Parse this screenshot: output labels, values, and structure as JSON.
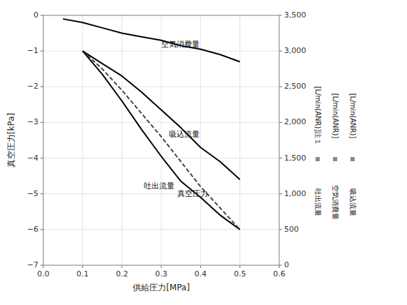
{
  "chart_data": {
    "type": "line",
    "xlabel": "供給圧力[MPa]",
    "ylabel": "真空圧力[kPa]",
    "xlim": [
      0.0,
      0.6
    ],
    "xticks": [
      {
        "value": 0.0,
        "label": "0.0"
      },
      0.1,
      0.2,
      0.3,
      0.4,
      0.5,
      0.6
    ],
    "ylim": [
      -7,
      0
    ],
    "yticks": [
      0,
      {
        "value": -1,
        "label": "−1"
      },
      {
        "value": -2,
        "label": "−2"
      },
      {
        "value": -3,
        "label": "−3"
      },
      {
        "value": -4,
        "label": "−4"
      },
      {
        "value": -5,
        "label": "−5"
      },
      {
        "value": -6,
        "label": "−6"
      },
      {
        "value": -7,
        "label": "−7"
      }
    ],
    "y2lim": [
      0,
      3500
    ],
    "y2ticks": [
      0,
      500,
      {
        "value": 1000,
        "label": "1,000"
      },
      {
        "value": 1500,
        "label": "1,500"
      },
      {
        "value": 2000,
        "label": "2,000"
      },
      {
        "value": 2500,
        "label": "2,500"
      },
      {
        "value": 3000,
        "label": "3,000"
      },
      {
        "value": 3500,
        "label": "3,500"
      }
    ],
    "y2_labels": [
      {
        "unit": "[L/min(ANR)]注１",
        "name": "吐出流量"
      },
      {
        "unit": "[L/min(ANR)]",
        "name": "空気消費量"
      },
      {
        "unit": "[L/min(ANR)]",
        "name": "吸込流量"
      }
    ],
    "grid": true,
    "series": [
      {
        "color": "#000000",
        "line_style": "solid",
        "x": [
          0.1,
          0.15,
          0.2,
          0.25,
          0.3,
          0.35,
          0.4,
          0.45,
          0.5
        ],
        "values": [
          -1.0,
          -1.65,
          -2.4,
          -3.2,
          -3.95,
          -4.65,
          -5.1,
          -5.6,
          -6.0
        ]
      },
      {
        "color": "#444444",
        "line_style": "dashed",
        "x": [
          0.1,
          0.15,
          0.2,
          0.25,
          0.3,
          0.35,
          0.4,
          0.45,
          0.5
        ],
        "values": [
          -1.0,
          -1.5,
          -2.1,
          -2.75,
          -3.4,
          -4.1,
          -4.8,
          -5.4,
          -6.0
        ]
      },
      {
        "color": "#000000",
        "line_style": "solid",
        "x": [
          0.1,
          0.15,
          0.2,
          0.25,
          0.3,
          0.35,
          0.4,
          0.45,
          0.5
        ],
        "values": [
          -1.0,
          -1.35,
          -1.7,
          -2.15,
          -2.65,
          -3.15,
          -3.7,
          -4.1,
          -4.6
        ]
      },
      {
        "color": "#000000",
        "line_style": "solid",
        "x": [
          0.05,
          0.1,
          0.15,
          0.2,
          0.25,
          0.3,
          0.35,
          0.4,
          0.45,
          0.5
        ],
        "values": [
          -0.1,
          -0.2,
          -0.35,
          -0.5,
          -0.6,
          -0.7,
          -0.85,
          -0.95,
          -1.1,
          -1.3
        ]
      }
    ],
    "annotations": [
      {
        "text": "吐出流量",
        "x": 0.255,
        "y": -4.8
      },
      {
        "text": "真空圧力",
        "x": 0.34,
        "y": -5.0
      },
      {
        "text": "吸込流量",
        "x": 0.32,
        "y": -3.35
      },
      {
        "text": "空気消費量",
        "x": 0.3,
        "y": -0.82
      }
    ]
  }
}
